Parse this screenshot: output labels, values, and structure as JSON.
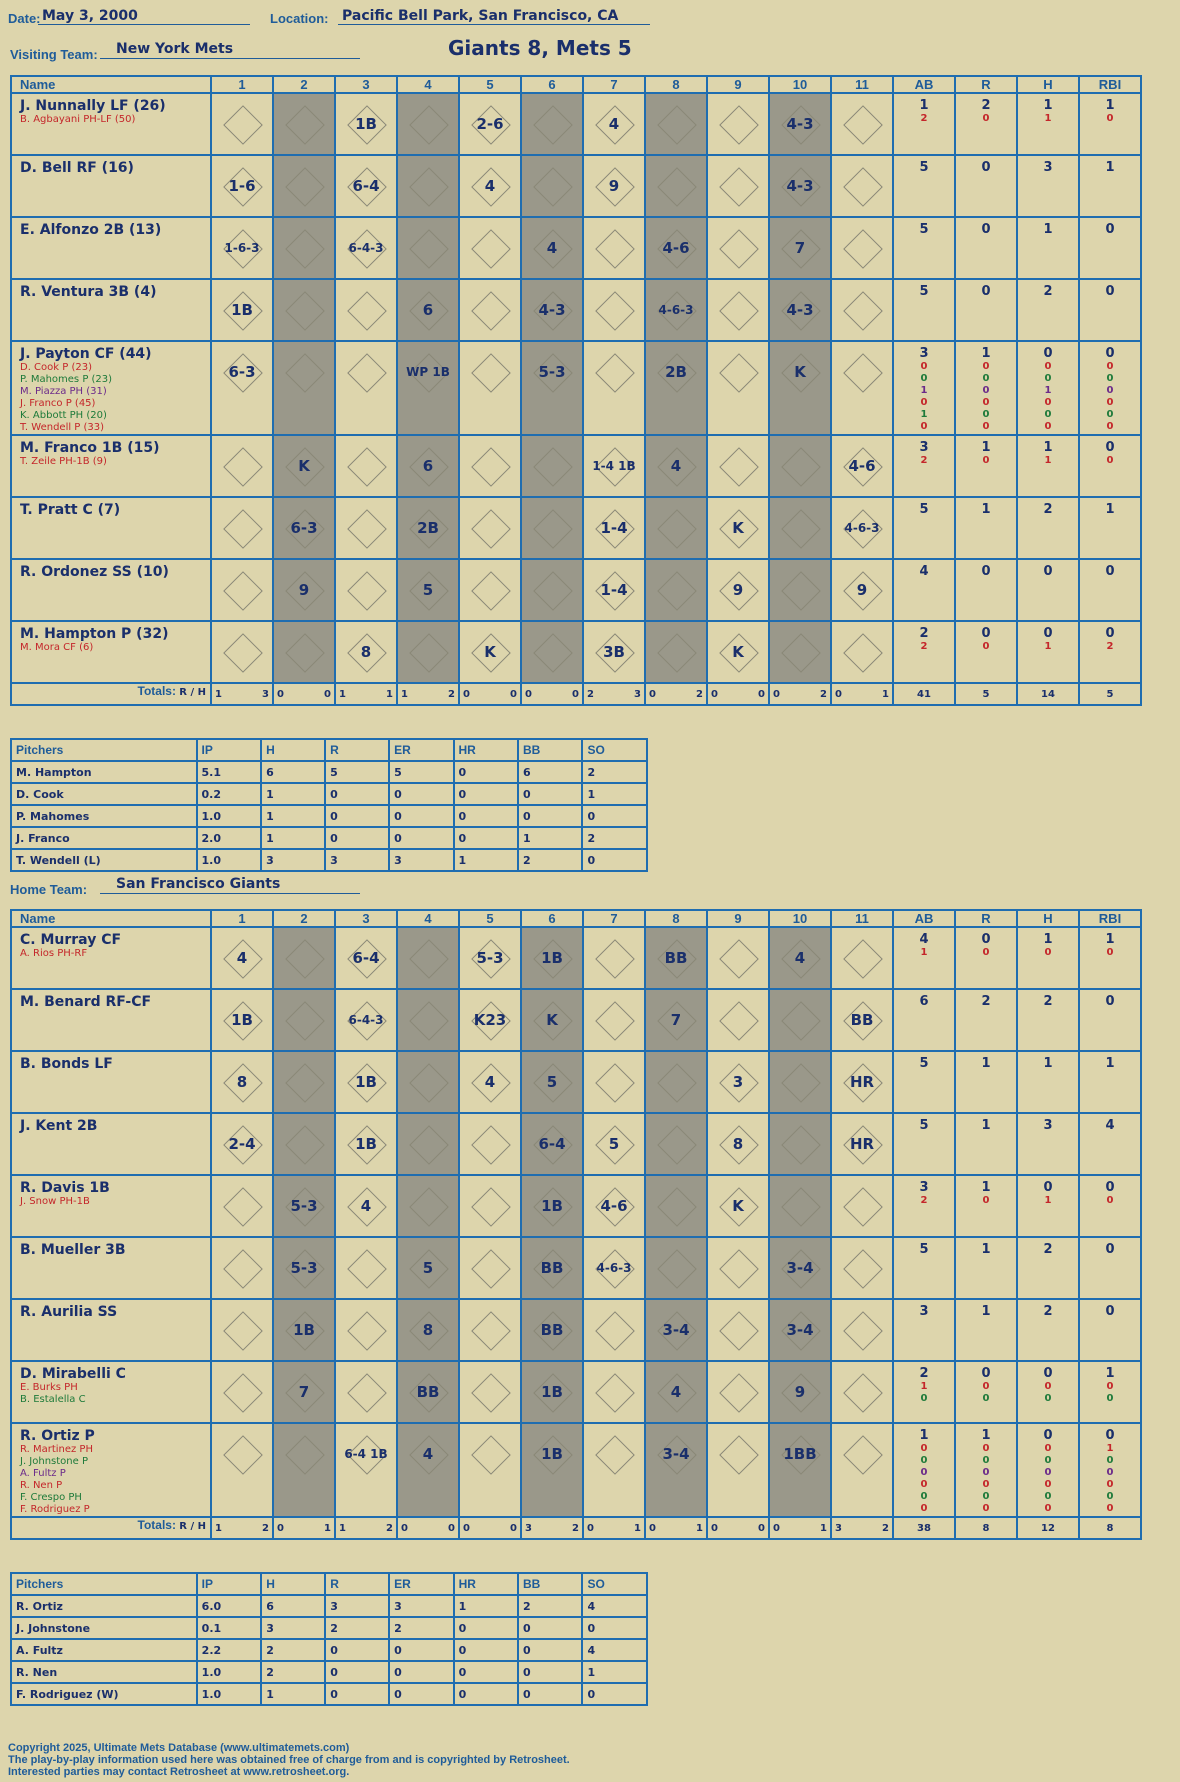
{
  "header": {
    "date_label": "Date:",
    "date": "May 3, 2000",
    "location_label": "Location:",
    "location": "Pacific Bell Park, San Francisco, CA",
    "visiting_label": "Visiting Team:",
    "visiting_team": "New York Mets",
    "result": "Giants 8, Mets 5",
    "home_label": "Home Team:",
    "home_team": "San Francisco Giants"
  },
  "columns": {
    "name": "Name",
    "innings": [
      "1",
      "2",
      "3",
      "4",
      "5",
      "6",
      "7",
      "8",
      "9",
      "10",
      "11"
    ],
    "stats": [
      "AB",
      "R",
      "H",
      "RBI"
    ]
  },
  "totals_label": "Totals:",
  "rh_label": [
    "R",
    "H"
  ],
  "visitors": {
    "batters": [
      {
        "name": "J. Nunnally LF (26)",
        "subs": [
          "B. Agbayani PH-LF (50)"
        ],
        "stats": [
          [
            "1",
            "2"
          ],
          [
            "2",
            "0"
          ],
          [
            "1",
            "1"
          ],
          [
            "1",
            "0"
          ]
        ],
        "innings": [
          "",
          "",
          "1B",
          "",
          "2-6",
          "",
          "4",
          "",
          "",
          "4-3",
          "",
          ""
        ],
        "marks": {
          "1": "HR",
          "3": "1B BB",
          "5": "BB",
          "10": "1B"
        }
      },
      {
        "name": "D. Bell RF (16)",
        "subs": [],
        "stats": [
          [
            "5"
          ],
          [
            "0"
          ],
          [
            "3"
          ],
          [
            "1"
          ]
        ],
        "innings": [
          "1-6",
          "",
          "6-4",
          "",
          "4",
          "",
          "9",
          "",
          "",
          "4-3",
          ""
        ]
      },
      {
        "name": "E. Alfonzo 2B (13)",
        "subs": [],
        "stats": [
          [
            "5"
          ],
          [
            "0"
          ],
          [
            "1"
          ],
          [
            "0"
          ]
        ],
        "innings": [
          "1-6-3",
          "",
          "6-4-3",
          "",
          "",
          "4",
          "",
          "4-6",
          "",
          "7",
          ""
        ]
      },
      {
        "name": "R. Ventura 3B (4)",
        "subs": [],
        "stats": [
          [
            "5"
          ],
          [
            "0"
          ],
          [
            "2"
          ],
          [
            "0"
          ]
        ],
        "innings": [
          "1B",
          "",
          "",
          "6",
          "",
          "4-3",
          "",
          "4-6-3",
          "",
          "4-3",
          ""
        ]
      },
      {
        "name": "J. Payton CF (44)",
        "subs": [
          "D. Cook P (23)",
          "P. Mahomes P (23)",
          "M. Piazza PH (31)",
          "J. Franco P (45)",
          "K. Abbott PH (20)",
          "T. Wendell P (33)"
        ],
        "stats": [
          [
            "3",
            "0",
            "0",
            "1",
            "0",
            "1",
            "0"
          ],
          [
            "1",
            "0",
            "0",
            "0",
            "0",
            "0",
            "0"
          ],
          [
            "0",
            "0",
            "0",
            "1",
            "0",
            "0",
            "0"
          ],
          [
            "0",
            "0",
            "0",
            "0",
            "0",
            "0",
            "0"
          ]
        ],
        "innings": [
          "6-3",
          "",
          "",
          "WP 1B",
          "",
          "5-3",
          "",
          "2B",
          "",
          "K",
          ""
        ]
      },
      {
        "name": "M. Franco 1B (15)",
        "subs": [
          "T. Zeile PH-1B (9)"
        ],
        "stats": [
          [
            "3",
            "2"
          ],
          [
            "1",
            "0"
          ],
          [
            "1",
            "1"
          ],
          [
            "0",
            "0"
          ]
        ],
        "innings": [
          "",
          "K",
          "",
          "6",
          "",
          "",
          "1-4 1B",
          "4",
          "",
          "",
          "4-6"
        ]
      },
      {
        "name": "T. Pratt C (7)",
        "subs": [],
        "stats": [
          [
            "5"
          ],
          [
            "1"
          ],
          [
            "2"
          ],
          [
            "1"
          ]
        ],
        "innings": [
          "",
          "6-3",
          "",
          "2B",
          "",
          "",
          "1-4",
          "",
          "K",
          "",
          "4-6-3"
        ]
      },
      {
        "name": "R. Ordonez SS (10)",
        "subs": [],
        "stats": [
          [
            "4"
          ],
          [
            "0"
          ],
          [
            "0"
          ],
          [
            "0"
          ]
        ],
        "innings": [
          "",
          "9",
          "",
          "5",
          "",
          "",
          "1-4",
          "",
          "9",
          "",
          "9"
        ]
      },
      {
        "name": "M. Hampton P (32)",
        "subs": [
          "M. Mora CF (6)"
        ],
        "stats": [
          [
            "2",
            "2"
          ],
          [
            "0",
            "0"
          ],
          [
            "0",
            "1"
          ],
          [
            "0",
            "2"
          ]
        ],
        "innings": [
          "",
          "",
          "8",
          "",
          "K",
          "",
          "3B",
          "",
          "K",
          "",
          ""
        ]
      }
    ],
    "totals_rh": [
      [
        "1",
        "3"
      ],
      [
        "0",
        "0"
      ],
      [
        "1",
        "1"
      ],
      [
        "1",
        "2"
      ],
      [
        "0",
        "0"
      ],
      [
        "0",
        "0"
      ],
      [
        "2",
        "3"
      ],
      [
        "0",
        "2"
      ],
      [
        "0",
        "0"
      ],
      [
        "0",
        "2"
      ],
      [
        "0",
        "1"
      ]
    ],
    "totals_stats": [
      "41",
      "5",
      "14",
      "5"
    ],
    "pitchers_header": [
      "Pitchers",
      "IP",
      "H",
      "R",
      "ER",
      "HR",
      "BB",
      "SO"
    ],
    "pitchers": [
      [
        "M. Hampton",
        "5.1",
        "6",
        "5",
        "5",
        "0",
        "6",
        "2"
      ],
      [
        "D. Cook",
        "0.2",
        "1",
        "0",
        "0",
        "0",
        "0",
        "1"
      ],
      [
        "P. Mahomes",
        "1.0",
        "1",
        "0",
        "0",
        "0",
        "0",
        "0"
      ],
      [
        "J. Franco",
        "2.0",
        "1",
        "0",
        "0",
        "0",
        "1",
        "2"
      ],
      [
        "T. Wendell (L)",
        "1.0",
        "3",
        "3",
        "3",
        "1",
        "2",
        "0"
      ]
    ]
  },
  "home": {
    "batters": [
      {
        "name": "C. Murray CF",
        "subs": [
          "A. Rios PH-RF"
        ],
        "stats": [
          [
            "4",
            "1"
          ],
          [
            "0",
            "0"
          ],
          [
            "1",
            "0"
          ],
          [
            "1",
            "0"
          ]
        ],
        "innings": [
          "4",
          "",
          "6-4",
          "",
          "5-3",
          "1B",
          "",
          "BB",
          "",
          "4",
          ""
        ]
      },
      {
        "name": "M. Benard RF-CF",
        "subs": [],
        "stats": [
          [
            "6"
          ],
          [
            "2"
          ],
          [
            "2"
          ],
          [
            "0"
          ]
        ],
        "innings": [
          "1B",
          "",
          "6-4-3",
          "",
          "K23",
          "K",
          "",
          "7",
          "",
          "",
          "BB"
        ]
      },
      {
        "name": "B. Bonds LF",
        "subs": [],
        "stats": [
          [
            "5"
          ],
          [
            "1"
          ],
          [
            "1"
          ],
          [
            "1"
          ]
        ],
        "innings": [
          "8",
          "",
          "1B",
          "",
          "4",
          "5",
          "",
          "",
          "3",
          "",
          "HR"
        ]
      },
      {
        "name": "J. Kent 2B",
        "subs": [],
        "stats": [
          [
            "5"
          ],
          [
            "1"
          ],
          [
            "3"
          ],
          [
            "4"
          ]
        ],
        "innings": [
          "2-4",
          "",
          "1B",
          "",
          "",
          "6-4",
          "5",
          "",
          "8",
          "",
          "HR"
        ]
      },
      {
        "name": "R. Davis 1B",
        "subs": [
          "J. Snow PH-1B"
        ],
        "stats": [
          [
            "3",
            "2"
          ],
          [
            "1",
            "0"
          ],
          [
            "0",
            "1"
          ],
          [
            "0",
            "0"
          ]
        ],
        "innings": [
          "",
          "5-3",
          "4",
          "",
          "",
          "1B",
          "4-6",
          "",
          "K",
          "",
          ""
        ]
      },
      {
        "name": "B. Mueller 3B",
        "subs": [],
        "stats": [
          [
            "5"
          ],
          [
            "1"
          ],
          [
            "2"
          ],
          [
            "0"
          ]
        ],
        "innings": [
          "",
          "5-3",
          "",
          "5",
          "",
          "BB",
          "4-6-3",
          "",
          "",
          "3-4",
          ""
        ]
      },
      {
        "name": "R. Aurilia SS",
        "subs": [],
        "stats": [
          [
            "3"
          ],
          [
            "1"
          ],
          [
            "2"
          ],
          [
            "0"
          ]
        ],
        "innings": [
          "",
          "1B",
          "",
          "8",
          "",
          "BB",
          "",
          "3-4",
          "",
          "3-4",
          ""
        ]
      },
      {
        "name": "D. Mirabelli C",
        "subs": [
          "E. Burks PH",
          "B. Estalella C"
        ],
        "stats": [
          [
            "2",
            "1",
            "0"
          ],
          [
            "0",
            "0",
            "0"
          ],
          [
            "0",
            "0",
            "0"
          ],
          [
            "1",
            "0",
            "0"
          ]
        ],
        "innings": [
          "",
          "7",
          "",
          "BB",
          "",
          "1B",
          "",
          "4",
          "",
          "9",
          ""
        ]
      },
      {
        "name": "R. Ortiz P",
        "subs": [
          "R. Martinez PH",
          "J. Johnstone P",
          "A. Fultz P",
          "R. Nen P",
          "F. Crespo PH",
          "F. Rodriguez P"
        ],
        "stats": [
          [
            "1",
            "0",
            "0",
            "0",
            "0",
            "0",
            "0"
          ],
          [
            "1",
            "0",
            "0",
            "0",
            "0",
            "0",
            "0"
          ],
          [
            "0",
            "0",
            "0",
            "0",
            "0",
            "0",
            "0"
          ],
          [
            "0",
            "1",
            "0",
            "0",
            "0",
            "0",
            "0"
          ]
        ],
        "innings": [
          "",
          "",
          "6-4 1B",
          "4",
          "",
          "1B",
          "",
          "3-4",
          "",
          "1BB",
          ""
        ]
      }
    ],
    "totals_rh": [
      [
        "1",
        "2"
      ],
      [
        "0",
        "1"
      ],
      [
        "1",
        "2"
      ],
      [
        "0",
        "0"
      ],
      [
        "0",
        "0"
      ],
      [
        "3",
        "2"
      ],
      [
        "0",
        "1"
      ],
      [
        "0",
        "1"
      ],
      [
        "0",
        "0"
      ],
      [
        "0",
        "1"
      ],
      [
        "3",
        "2"
      ]
    ],
    "totals_stats": [
      "38",
      "8",
      "12",
      "8"
    ],
    "pitchers_header": [
      "Pitchers",
      "IP",
      "H",
      "R",
      "ER",
      "HR",
      "BB",
      "SO"
    ],
    "pitchers": [
      [
        "R. Ortiz",
        "6.0",
        "6",
        "3",
        "3",
        "1",
        "2",
        "4"
      ],
      [
        "J. Johnstone",
        "0.1",
        "3",
        "2",
        "2",
        "0",
        "0",
        "0"
      ],
      [
        "A. Fultz",
        "2.2",
        "2",
        "0",
        "0",
        "0",
        "0",
        "4"
      ],
      [
        "R. Nen",
        "1.0",
        "2",
        "0",
        "0",
        "0",
        "0",
        "1"
      ],
      [
        "F. Rodriguez (W)",
        "1.0",
        "1",
        "0",
        "0",
        "0",
        "0",
        "0"
      ]
    ]
  },
  "footer": {
    "line1": "Copyright 2025, Ultimate Mets Database (www.ultimatemets.com)",
    "line2": "The play-by-play information used here was obtained free of charge from and is copyrighted by Retrosheet.",
    "line3": "Interested parties may contact Retrosheet at www.retrosheet.org."
  },
  "watermark": [
    "Ultimate",
    "Mets",
    "Database"
  ]
}
